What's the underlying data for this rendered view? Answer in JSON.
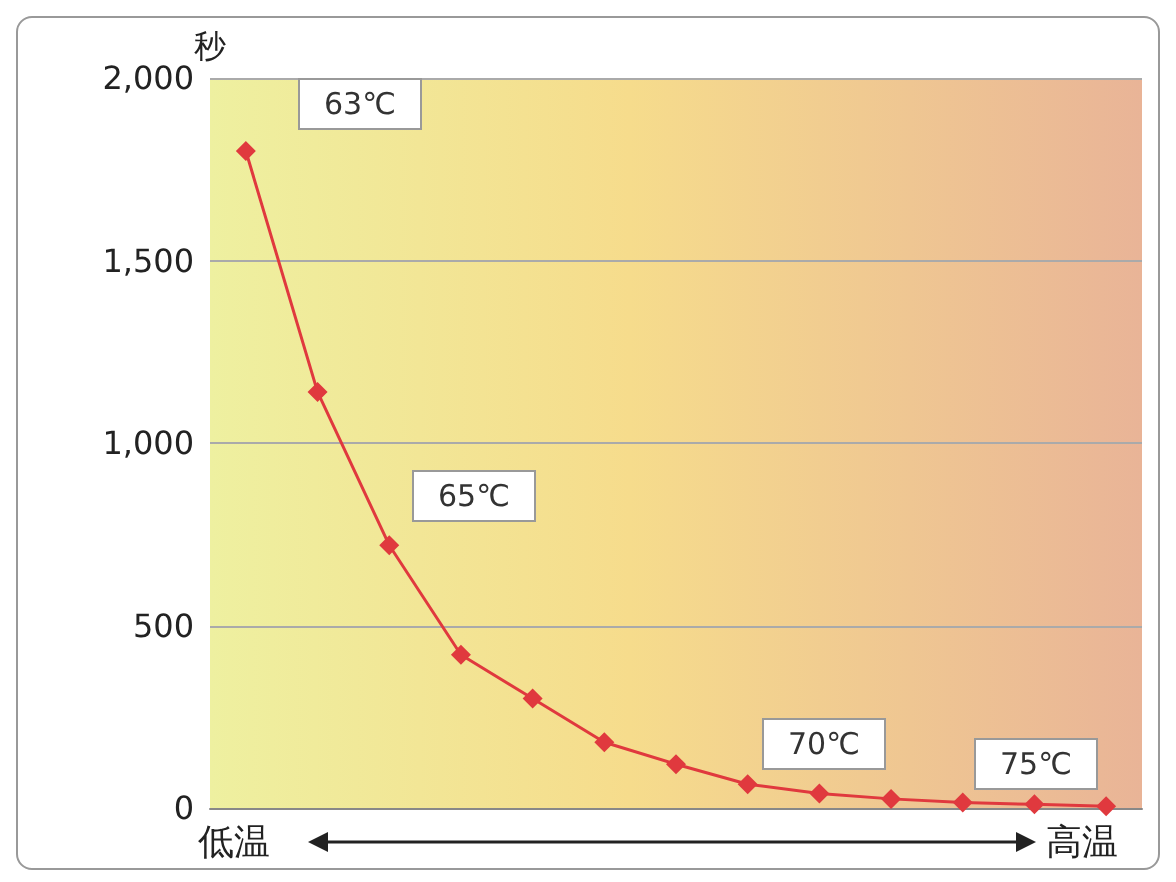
{
  "chart_data": {
    "type": "line",
    "ylabel": "秒",
    "categories": [
      null,
      null,
      null,
      null,
      null,
      null,
      null,
      null,
      null,
      null,
      null,
      null,
      null
    ],
    "values": [
      1800,
      1140,
      720,
      420,
      300,
      180,
      120,
      65,
      40,
      25,
      15,
      10,
      5
    ],
    "color": "#e0393e",
    "marker": "diamond",
    "line_style": "solid",
    "ylim": [
      0,
      2000
    ],
    "yticks": [
      0,
      500,
      {
        "value": 1000,
        "label": "1,000"
      },
      {
        "value": 1500,
        "label": "1,500"
      },
      {
        "value": 2000,
        "label": "2,000"
      }
    ],
    "grid": "y",
    "annotations": [
      "63℃",
      "65℃",
      "70℃",
      "75℃",
      "低温",
      "高温"
    ]
  }
}
